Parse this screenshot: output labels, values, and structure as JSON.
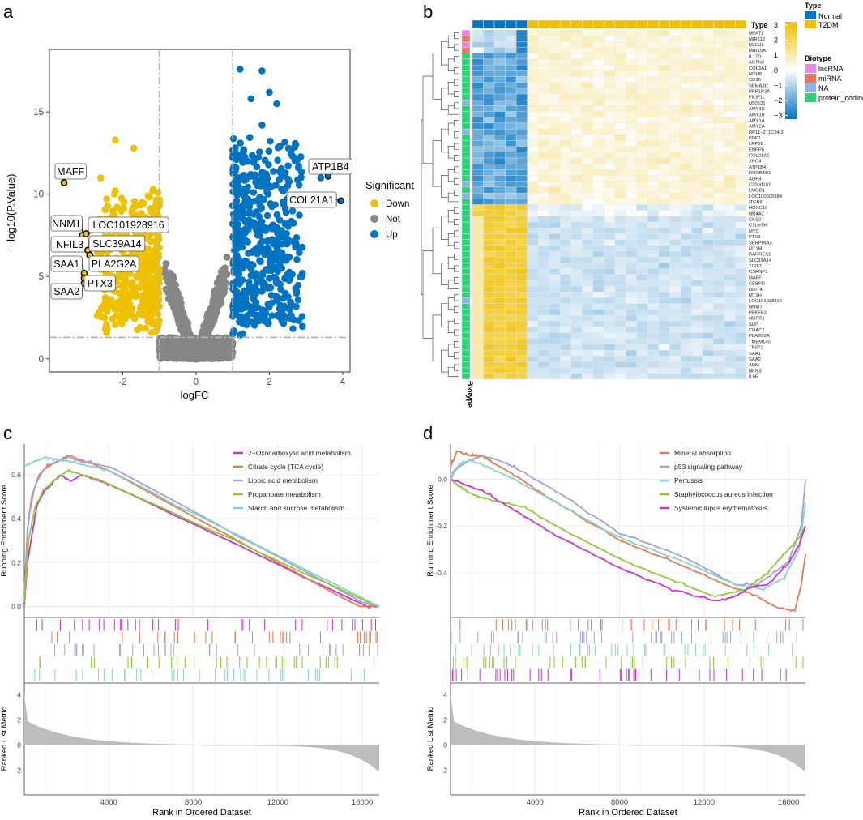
{
  "panels": {
    "a": "a",
    "b": "b",
    "c": "c",
    "d": "d"
  },
  "chart_data": [
    {
      "panel": "a",
      "type": "scatter",
      "xlabel": "logFC",
      "ylabel": "−log10(P.Value)",
      "xlim": [
        -4,
        4.2
      ],
      "ylim": [
        -0.8,
        18.8
      ],
      "xticks": [
        -2,
        0,
        2,
        4
      ],
      "yticks": [
        0,
        5,
        10,
        15
      ],
      "thresholds": {
        "logFC": [
          -1,
          1
        ],
        "neg_log10_p": 1.3
      },
      "legend": {
        "title": "Significant",
        "items": [
          {
            "label": "Down",
            "color": "#EFC000"
          },
          {
            "label": "Not",
            "color": "#868686"
          },
          {
            "label": "Up",
            "color": "#0073C2"
          }
        ]
      },
      "labeled_genes": [
        {
          "gene": "MAFF",
          "logFC": -3.6,
          "neg_log10_p": 10.7
        },
        {
          "gene": "ATP1B4",
          "logFC": 3.6,
          "neg_log10_p": 11.1
        },
        {
          "gene": "COL21A1",
          "logFC": 3.95,
          "neg_log10_p": 9.6
        },
        {
          "gene": "NNMT",
          "logFC": -3.1,
          "neg_log10_p": 7.5
        },
        {
          "gene": "LOC101928916",
          "logFC": -3.0,
          "neg_log10_p": 7.6
        },
        {
          "gene": "NFIL3",
          "logFC": -2.95,
          "neg_log10_p": 6.9
        },
        {
          "gene": "SLC39A14",
          "logFC": -2.95,
          "neg_log10_p": 6.6
        },
        {
          "gene": "SAA1",
          "logFC": -3.05,
          "neg_log10_p": 5.2
        },
        {
          "gene": "PLA2G2A",
          "logFC": -2.9,
          "neg_log10_p": 6.3
        },
        {
          "gene": "SAA2",
          "logFC": -3.05,
          "neg_log10_p": 4.6
        },
        {
          "gene": "PTX3",
          "logFC": -3.05,
          "neg_log10_p": 4.9
        }
      ]
    },
    {
      "panel": "b",
      "type": "heatmap",
      "row_labels": [
        "NEAT1",
        "MIR612",
        "DLEU2",
        "MIR15A",
        "IL17D",
        "ACTN3",
        "COL3A1",
        "MYH8",
        "CD36",
        "SEMA3C",
        "PPP1R3A",
        "FILIP1L",
        "U50535",
        "AMY1C",
        "AMY1B",
        "AMY1A",
        "AMY2A",
        "RP11−271C24.3",
        "PDP1",
        "LRP1B",
        "ENPP5",
        "COL21A1",
        "XPO4",
        "ATP1B4",
        "RHOBTB1",
        "AQP4",
        "C20orf187",
        "LMOD1",
        "LOC100505984",
        "ITGB6",
        "HOXC10",
        "NR4A2",
        "CKS2",
        "C11orf96",
        "MYC",
        "PTX3",
        "SERPINA3",
        "MT1M",
        "RARRES1",
        "SLC39A14",
        "TGIF1",
        "CSRNP1",
        "MAFF",
        "CEBPD",
        "DDIT4",
        "MT1H",
        "LOC101928916",
        "NNMT",
        "PFKFB3",
        "NUPR1",
        "SLPI",
        "CHAC1",
        "PLA2G2A",
        "TMEM140",
        "TPST2",
        "SAA1",
        "SAA2",
        "ADM",
        "NFIL3",
        "IL6R"
      ],
      "row_biotypes": [
        "lncRNA",
        "miRNA",
        "lncRNA",
        "miRNA",
        "protein_coding",
        "protein_coding",
        "protein_coding",
        "protein_coding",
        "protein_coding",
        "protein_coding",
        "protein_coding",
        "protein_coding",
        "NA",
        "protein_coding",
        "protein_coding",
        "protein_coding",
        "protein_coding",
        "NA",
        "protein_coding",
        "protein_coding",
        "protein_coding",
        "protein_coding",
        "protein_coding",
        "protein_coding",
        "protein_coding",
        "protein_coding",
        "NA",
        "protein_coding",
        "NA",
        "protein_coding",
        "protein_coding",
        "protein_coding",
        "protein_coding",
        "protein_coding",
        "protein_coding",
        "protein_coding",
        "protein_coding",
        "protein_coding",
        "protein_coding",
        "protein_coding",
        "protein_coding",
        "protein_coding",
        "protein_coding",
        "protein_coding",
        "protein_coding",
        "protein_coding",
        "NA",
        "protein_coding",
        "protein_coding",
        "protein_coding",
        "protein_coding",
        "protein_coding",
        "protein_coding",
        "protein_coding",
        "protein_coding",
        "protein_coding",
        "protein_coding",
        "protein_coding",
        "protein_coding",
        "protein_coding"
      ],
      "column_groups": [
        {
          "name": "Normal",
          "count": 5
        },
        {
          "name": "T2DM",
          "count": 20
        }
      ],
      "type_label": "Type",
      "biotype_axis_label": "Biotype",
      "legend_scale": {
        "ticks": [
          "3",
          "2",
          "1",
          "0",
          "−1",
          "−2",
          "−3"
        ],
        "colors": [
          "#EFC000",
          "#ffffff",
          "#0073C2"
        ]
      },
      "legend_type": {
        "title": "Type",
        "items": [
          {
            "label": "Normal",
            "color": "#0073C2"
          },
          {
            "label": "T2DM",
            "color": "#EFC000"
          }
        ]
      },
      "legend_biotype": {
        "title": "Biotype",
        "items": [
          {
            "label": "lncRNA",
            "color": "#EE82EE"
          },
          {
            "label": "miRNA",
            "color": "#E8765A"
          },
          {
            "label": "NA",
            "color": "#8DB4E8"
          },
          {
            "label": "protein_coding",
            "color": "#2BD473"
          }
        ]
      }
    },
    {
      "panel": "c",
      "type": "line",
      "ylabel": "Running Enrichment Score",
      "ylabel_bottom": "Ranked List Metric",
      "xlabel": "Rank in Ordered Dataset",
      "xlim": [
        0,
        16800
      ],
      "ylim": [
        -0.05,
        0.74
      ],
      "xticks": [
        4000,
        8000,
        12000,
        16000
      ],
      "yticks": [
        0.0,
        0.2,
        0.4,
        0.6
      ],
      "metric_ticks": [
        4,
        2,
        0,
        -2
      ],
      "series": [
        {
          "name": "2−Oxocarboxylic acid metabolism",
          "color": "#CC33CC",
          "x": [
            0,
            150,
            400,
            600,
            900,
            1300,
            1700,
            2200,
            2700,
            3300,
            4200,
            16200,
            16800
          ],
          "y": [
            0.0,
            0.2,
            0.35,
            0.46,
            0.52,
            0.56,
            0.6,
            0.57,
            0.6,
            0.58,
            0.55,
            0.0,
            0.0
          ]
        },
        {
          "name": "Citrate cycle (TCA cycle)",
          "color": "#E07B54",
          "x": [
            0,
            150,
            350,
            700,
            1100,
            1600,
            2100,
            2600,
            3200,
            4000,
            15800,
            16800
          ],
          "y": [
            0.05,
            0.35,
            0.5,
            0.6,
            0.64,
            0.66,
            0.69,
            0.67,
            0.65,
            0.62,
            0.0,
            0.0
          ]
        },
        {
          "name": "Lipoic acid metabolism",
          "color": "#A3A0D8",
          "x": [
            0,
            200,
            500,
            900,
            1500,
            2100,
            2700,
            3300,
            4200,
            16000,
            16800
          ],
          "y": [
            0.02,
            0.4,
            0.55,
            0.62,
            0.66,
            0.68,
            0.66,
            0.65,
            0.63,
            0.02,
            0.0
          ]
        },
        {
          "name": "Propanoate metabolism",
          "color": "#8ECA31",
          "x": [
            0,
            200,
            500,
            900,
            1500,
            2100,
            2700,
            3500,
            16300,
            16800
          ],
          "y": [
            0.02,
            0.3,
            0.45,
            0.53,
            0.58,
            0.62,
            0.6,
            0.58,
            0.02,
            0.0
          ]
        },
        {
          "name": "Starch and sucrose metabolism",
          "color": "#86D4C4",
          "x": [
            0,
            500,
            1000,
            1500,
            2200,
            3000,
            4000,
            16800
          ],
          "y": [
            0.64,
            0.66,
            0.68,
            0.67,
            0.66,
            0.64,
            0.62,
            0.0
          ]
        }
      ]
    },
    {
      "panel": "d",
      "type": "line",
      "ylabel": "Running Enrichment Score",
      "ylabel_bottom": "Ranked List Metric",
      "xlabel": "Rank in Ordered Dataset",
      "xlim": [
        0,
        16800
      ],
      "ylim": [
        -0.59,
        0.15
      ],
      "xticks": [
        4000,
        8000,
        12000,
        16000
      ],
      "yticks": [
        0.0,
        -0.2,
        -0.4
      ],
      "metric_ticks": [
        4,
        2,
        0,
        -2
      ],
      "series": [
        {
          "name": "Mineral absorption",
          "color": "#E07B54",
          "x": [
            0,
            300,
            900,
            1500,
            2000,
            3000,
            5000,
            8000,
            11000,
            13000,
            14500,
            15500,
            16300,
            16600,
            16800
          ],
          "y": [
            0.05,
            0.12,
            0.1,
            0.1,
            0.07,
            0.02,
            -0.1,
            -0.26,
            -0.37,
            -0.45,
            -0.5,
            -0.55,
            -0.56,
            -0.45,
            -0.32
          ]
        },
        {
          "name": "p53 signaling pathway",
          "color": "#A3A0D8",
          "x": [
            0,
            300,
            900,
            1500,
            2300,
            3000,
            5000,
            8000,
            11000,
            13500,
            14500,
            15300,
            16000,
            16600,
            16800
          ],
          "y": [
            0.0,
            0.05,
            0.08,
            0.1,
            0.08,
            0.05,
            -0.05,
            -0.23,
            -0.33,
            -0.45,
            -0.45,
            -0.4,
            -0.35,
            -0.2,
            0.0
          ]
        },
        {
          "name": "Pertussis",
          "color": "#86D4C4",
          "x": [
            0,
            500,
            1000,
            1800,
            3000,
            5000,
            8000,
            11000,
            13500,
            14800,
            15800,
            16500,
            16800
          ],
          "y": [
            0.02,
            0.07,
            0.08,
            0.05,
            0.0,
            -0.1,
            -0.25,
            -0.35,
            -0.45,
            -0.47,
            -0.42,
            -0.3,
            -0.1
          ]
        },
        {
          "name": "Staphylococcus aureus infection",
          "color": "#8ECA31",
          "x": [
            0,
            700,
            1500,
            2500,
            3500,
            5000,
            8000,
            11000,
            12500,
            14000,
            15000,
            16000,
            16500,
            16800
          ],
          "y": [
            0.0,
            -0.05,
            -0.08,
            -0.1,
            -0.12,
            -0.2,
            -0.34,
            -0.45,
            -0.5,
            -0.47,
            -0.4,
            -0.3,
            -0.25,
            -0.2
          ]
        },
        {
          "name": "Systemic lupus erythematosus",
          "color": "#CC33CC",
          "x": [
            0,
            1500,
            3000,
            5000,
            8000,
            10500,
            12500,
            13500,
            14200,
            15000,
            16000,
            16500,
            16800
          ],
          "y": [
            0.0,
            -0.05,
            -0.13,
            -0.24,
            -0.38,
            -0.47,
            -0.52,
            -0.5,
            -0.46,
            -0.45,
            -0.36,
            -0.28,
            -0.2
          ]
        }
      ]
    }
  ]
}
